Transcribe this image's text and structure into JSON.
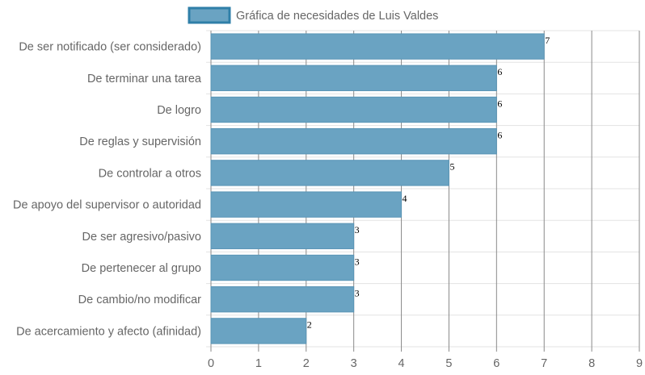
{
  "chart_data": {
    "type": "bar",
    "orientation": "horizontal",
    "legend_position": "top-center",
    "grid": true,
    "categories": [
      "De ser notificado (ser considerado)",
      "De terminar una tarea",
      "De logro",
      "De reglas y supervisión",
      "De controlar a otros",
      "De apoyo del supervisor o autoridad",
      "De ser agresivo/pasivo",
      "De pertenecer al grupo",
      "De cambio/no modificar",
      "De acercamiento y afecto (afinidad)"
    ],
    "series": [
      {
        "name": "Gráfica de necesidades de Luis Valdes",
        "values": [
          7,
          6,
          6,
          6,
          5,
          4,
          3,
          3,
          3,
          2
        ]
      }
    ],
    "xlim": [
      0,
      9
    ],
    "xticks": [
      "0",
      "1",
      "2",
      "3",
      "4",
      "5",
      "6",
      "7",
      "8",
      "9"
    ],
    "data_labels": [
      "7",
      "6",
      "6",
      "6",
      "5",
      "4",
      "3",
      "3",
      "3",
      "2"
    ],
    "colors": {
      "bar_fill": "#6aa3c2",
      "bar_stroke": "#5a95b6",
      "legend_border": "#2f7fa8",
      "vertical_grid": "#8a8a8a",
      "horizontal_grid": "#e3e3e3",
      "text": "#666666"
    }
  }
}
